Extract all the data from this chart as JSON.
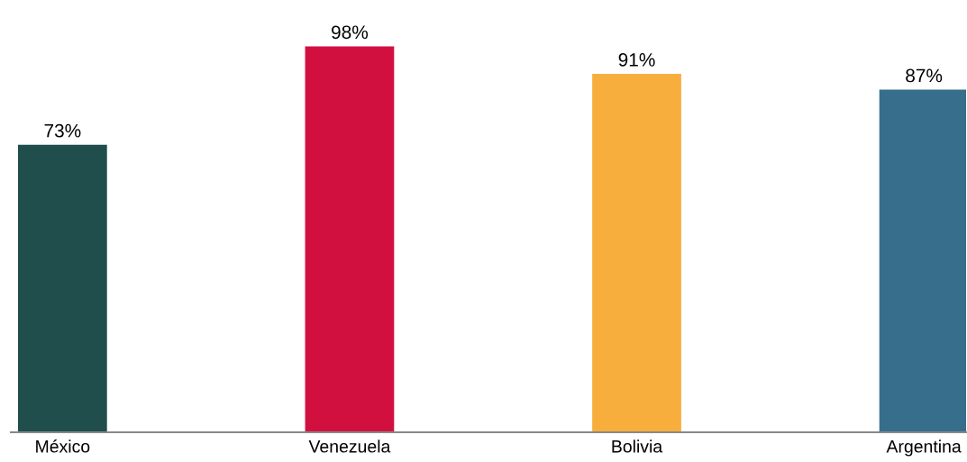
{
  "chart_data": {
    "type": "bar",
    "categories": [
      "México",
      "Venezuela",
      "Bolivia",
      "Argentina"
    ],
    "values": [
      73,
      98,
      91,
      87
    ],
    "colors": [
      "#1f4e4c",
      "#d21040",
      "#f8ae3c",
      "#376e8c"
    ],
    "value_labels": [
      "73%",
      "98%",
      "91%",
      "87%"
    ],
    "grid": false,
    "legend": false
  }
}
